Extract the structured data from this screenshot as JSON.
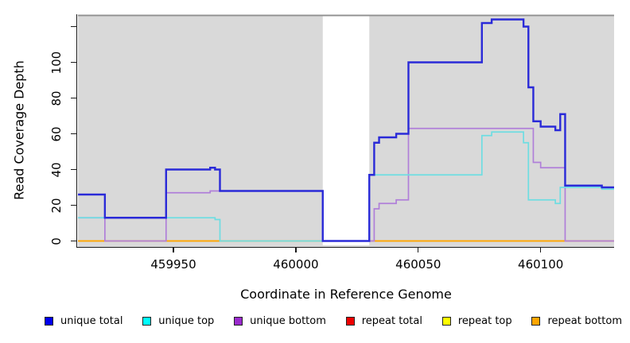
{
  "chart_data": {
    "type": "line",
    "line_style": "step-post",
    "title": "",
    "xlabel": "Coordinate in Reference Genome",
    "ylabel": "Read Coverage Depth",
    "xlim": [
      459911,
      460130
    ],
    "ylim": [
      -5,
      127
    ],
    "grid": false,
    "plot_bg": "#d9d9d9",
    "top_border_color": "#8f8f8f",
    "x_ticks": [
      {
        "value": 459950,
        "label": "459950"
      },
      {
        "value": 460000,
        "label": "460000"
      },
      {
        "value": 460050,
        "label": "460050"
      },
      {
        "value": 460100,
        "label": "460100"
      }
    ],
    "y_ticks": [
      {
        "value": 0,
        "label": "0"
      },
      {
        "value": 20,
        "label": "20"
      },
      {
        "value": 40,
        "label": "40"
      },
      {
        "value": 60,
        "label": "60"
      },
      {
        "value": 80,
        "label": "80"
      },
      {
        "value": 100,
        "label": "100"
      },
      {
        "value": 120,
        "label": ""
      }
    ],
    "no_data_gap": {
      "x_start": 460011,
      "x_end": 460030
    },
    "draw_order": [
      "repeat total",
      "repeat top",
      "repeat bottom",
      "unique bottom",
      "unique top",
      "unique total"
    ],
    "series": [
      {
        "name": "unique total",
        "line_color": "#2a2ad8",
        "line_width": 2.4,
        "steps": [
          [
            459911,
            26
          ],
          [
            459922,
            13
          ],
          [
            459947,
            40
          ],
          [
            459965,
            41
          ],
          [
            459967,
            40
          ],
          [
            459969,
            28
          ],
          [
            460011,
            0
          ],
          [
            460030,
            37
          ],
          [
            460032,
            55
          ],
          [
            460034,
            58
          ],
          [
            460041,
            60
          ],
          [
            460046,
            100
          ],
          [
            460076,
            122
          ],
          [
            460080,
            124
          ],
          [
            460093,
            120
          ],
          [
            460095,
            86
          ],
          [
            460097,
            67
          ],
          [
            460100,
            64
          ],
          [
            460106,
            62
          ],
          [
            460108,
            71
          ],
          [
            460110,
            31
          ],
          [
            460125,
            30
          ]
        ]
      },
      {
        "name": "unique top",
        "line_color": "#6edde2",
        "line_width": 1.7,
        "steps": [
          [
            459911,
            13
          ],
          [
            459967,
            12
          ],
          [
            459969,
            0
          ],
          [
            460030,
            37
          ],
          [
            460076,
            59
          ],
          [
            460080,
            61
          ],
          [
            460093,
            55
          ],
          [
            460095,
            23
          ],
          [
            460106,
            21
          ],
          [
            460108,
            30
          ],
          [
            460125,
            29
          ]
        ]
      },
      {
        "name": "unique bottom",
        "line_color": "#b07fd9",
        "line_width": 1.7,
        "steps": [
          [
            459911,
            13
          ],
          [
            459922,
            0
          ],
          [
            459947,
            27
          ],
          [
            459965,
            28
          ],
          [
            460011,
            0
          ],
          [
            460032,
            18
          ],
          [
            460034,
            21
          ],
          [
            460041,
            23
          ],
          [
            460046,
            63
          ],
          [
            460097,
            44
          ],
          [
            460100,
            41
          ],
          [
            460110,
            0
          ]
        ]
      },
      {
        "name": "repeat total",
        "line_color": "#ee0000",
        "line_width": 1.5,
        "steps": [
          [
            459911,
            0
          ]
        ]
      },
      {
        "name": "repeat top",
        "line_color": "#ffff00",
        "line_width": 1.5,
        "steps": [
          [
            459911,
            0
          ]
        ]
      },
      {
        "name": "repeat bottom",
        "line_color": "#ffa500",
        "line_width": 1.8,
        "steps": [
          [
            459911,
            0
          ]
        ]
      }
    ]
  },
  "legend": {
    "items": [
      {
        "label": "unique total",
        "swatch_color": "#0000ee"
      },
      {
        "label": "unique top",
        "swatch_color": "#00ffff"
      },
      {
        "label": "unique bottom",
        "swatch_color": "#9a2acd"
      },
      {
        "label": "repeat total",
        "swatch_color": "#ee0000"
      },
      {
        "label": "repeat top",
        "swatch_color": "#ffff00"
      },
      {
        "label": "repeat bottom",
        "swatch_color": "#ffa500"
      }
    ]
  }
}
